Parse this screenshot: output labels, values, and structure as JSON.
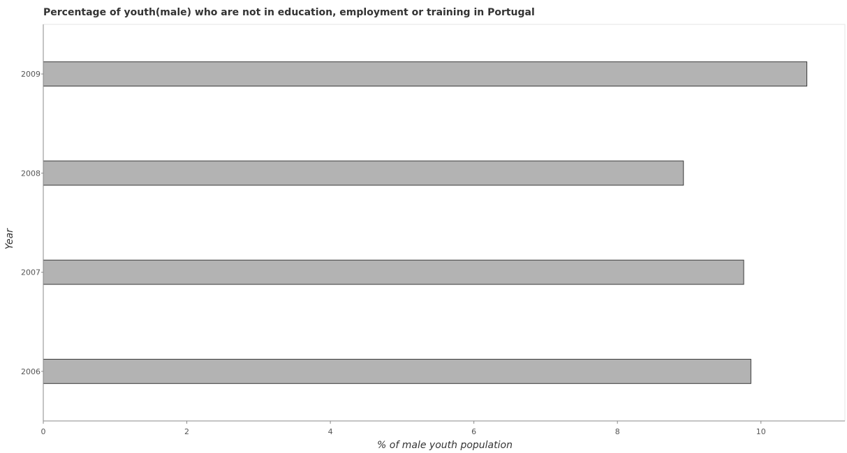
{
  "chart_data": {
    "type": "bar",
    "orientation": "horizontal",
    "title": "Percentage of youth(male) who are not in education, employment or training in Portugal",
    "xlabel": "% of male youth population",
    "ylabel": "Year",
    "categories": [
      "2006",
      "2007",
      "2008",
      "2009"
    ],
    "values": [
      9.86,
      9.76,
      8.92,
      10.64
    ],
    "xlim": [
      0,
      11.17
    ],
    "x_ticks": [
      0,
      2,
      4,
      6,
      8,
      10
    ],
    "x_tick_labels": [
      "0",
      "2",
      "4",
      "6",
      "8",
      "10"
    ],
    "grid": false,
    "legend": "none",
    "colors": {
      "bar_fill": "#b3b3b3",
      "bar_stroke": "#3a3a3a",
      "axis": "#888888"
    }
  }
}
